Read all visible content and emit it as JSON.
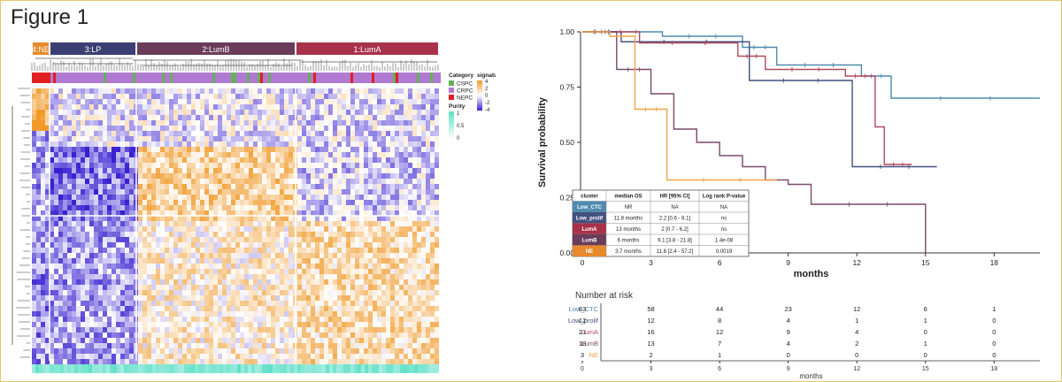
{
  "figure_title": "Figure 1",
  "colors": {
    "NE": "#e8892b",
    "LP": "#3b3f73",
    "LumB": "#6a3c5a",
    "LumA": "#a8324a",
    "Low_CTC": "#4f8bb0",
    "Low_prolif": "#44507e",
    "LumA_line": "#b24a5e",
    "LumB_line": "#7a4b6c",
    "NE_line": "#f0a548",
    "low": "#3a20d0",
    "mid": "#ffffff",
    "high": "#f09a2a",
    "purity": "#5fe0c8"
  },
  "heatmap": {
    "clusters": [
      {
        "label": "4:NE"
      },
      {
        "label": "3:LP"
      },
      {
        "label": "2:LumB"
      },
      {
        "label": "1:LumA"
      }
    ],
    "legend": {
      "category_title": "Category",
      "categories": [
        {
          "label": "CSPC",
          "color": "#66b05a"
        },
        {
          "label": "CRPC",
          "color": "#b07ad0"
        },
        {
          "label": "NEPC",
          "color": "#e02020"
        }
      ],
      "zscore_title": "signature z-score",
      "zscore_ticks": [
        "4",
        "2",
        "0",
        "-2",
        "-4"
      ],
      "purity_title": "Purity",
      "purity_ticks": [
        "1",
        "0.5",
        "0"
      ]
    }
  },
  "chart_data": {
    "type": "line",
    "title": "",
    "xlabel": "months",
    "ylabel": "Survival probability",
    "xlim": [
      0,
      20
    ],
    "ylim": [
      0,
      1
    ],
    "xticks": [
      0,
      3,
      6,
      9,
      12,
      15,
      18
    ],
    "yticks": [
      "0.00",
      "0.25",
      "0.50",
      "0.75",
      "1.00"
    ],
    "series": [
      {
        "name": "Low_CTC",
        "color": "#4f8bb0",
        "x": [
          0,
          3.5,
          7,
          8.5,
          12.2,
          13.5,
          20
        ],
        "y": [
          1.0,
          0.98,
          0.93,
          0.85,
          0.8,
          0.7,
          0.7
        ]
      },
      {
        "name": "Low_prolif",
        "color": "#44507e",
        "x": [
          0,
          1.7,
          7.3,
          11.8,
          15.5
        ],
        "y": [
          1.0,
          0.955,
          0.78,
          0.39,
          0.39
        ]
      },
      {
        "name": "LumA",
        "color": "#b24a5e",
        "x": [
          0,
          2.5,
          6.8,
          8,
          11.5,
          12.8,
          13.2,
          14.4
        ],
        "y": [
          1.0,
          0.95,
          0.89,
          0.83,
          0.8,
          0.57,
          0.4,
          0.4
        ]
      },
      {
        "name": "LumB",
        "color": "#7a4b6c",
        "x": [
          0,
          1.5,
          3,
          4,
          5,
          6,
          7,
          8,
          9,
          10,
          15
        ],
        "y": [
          1.0,
          0.83,
          0.72,
          0.56,
          0.5,
          0.44,
          0.39,
          0.33,
          0.31,
          0.22,
          0.0
        ]
      },
      {
        "name": "NE",
        "color": "#f0a548",
        "x": [
          0,
          1.2,
          2.3,
          3.7,
          8.5
        ],
        "y": [
          1.0,
          0.98,
          0.65,
          0.33,
          0.33
        ]
      }
    ],
    "table": {
      "headers": [
        "cluster",
        "median OS",
        "HR [95% CI]",
        "Log rank P-value"
      ],
      "rows": [
        [
          "Low_CTC",
          "NR",
          "NA",
          "NA"
        ],
        [
          "Low_prolif",
          "11.8 months",
          "2.2 [0.6 - 8.1]",
          "ns"
        ],
        [
          "LumA",
          "13 months",
          "2 [0.7 - 6.2]",
          "ns"
        ],
        [
          "LumB",
          "6 months",
          "9.1 [3.8 - 21.8]",
          "1.4e-08"
        ],
        [
          "NE",
          "3.7 months",
          "11.8 [2.4 - 57.2]",
          "0.0019"
        ]
      ]
    },
    "risk_table": {
      "title": "Number at risk",
      "xlabel": "months",
      "rows": [
        {
          "name": "Low_CTC",
          "values": [
            63,
            58,
            44,
            23,
            12,
            6,
            1
          ]
        },
        {
          "name": "Low_prolif",
          "values": [
            12,
            12,
            8,
            4,
            1,
            1,
            0
          ]
        },
        {
          "name": "LumA",
          "values": [
            21,
            16,
            12,
            9,
            4,
            0,
            0
          ]
        },
        {
          "name": "LumB",
          "values": [
            18,
            13,
            7,
            4,
            2,
            1,
            0
          ]
        },
        {
          "name": "NE",
          "values": [
            3,
            2,
            1,
            0,
            0,
            0,
            0
          ]
        }
      ]
    }
  }
}
